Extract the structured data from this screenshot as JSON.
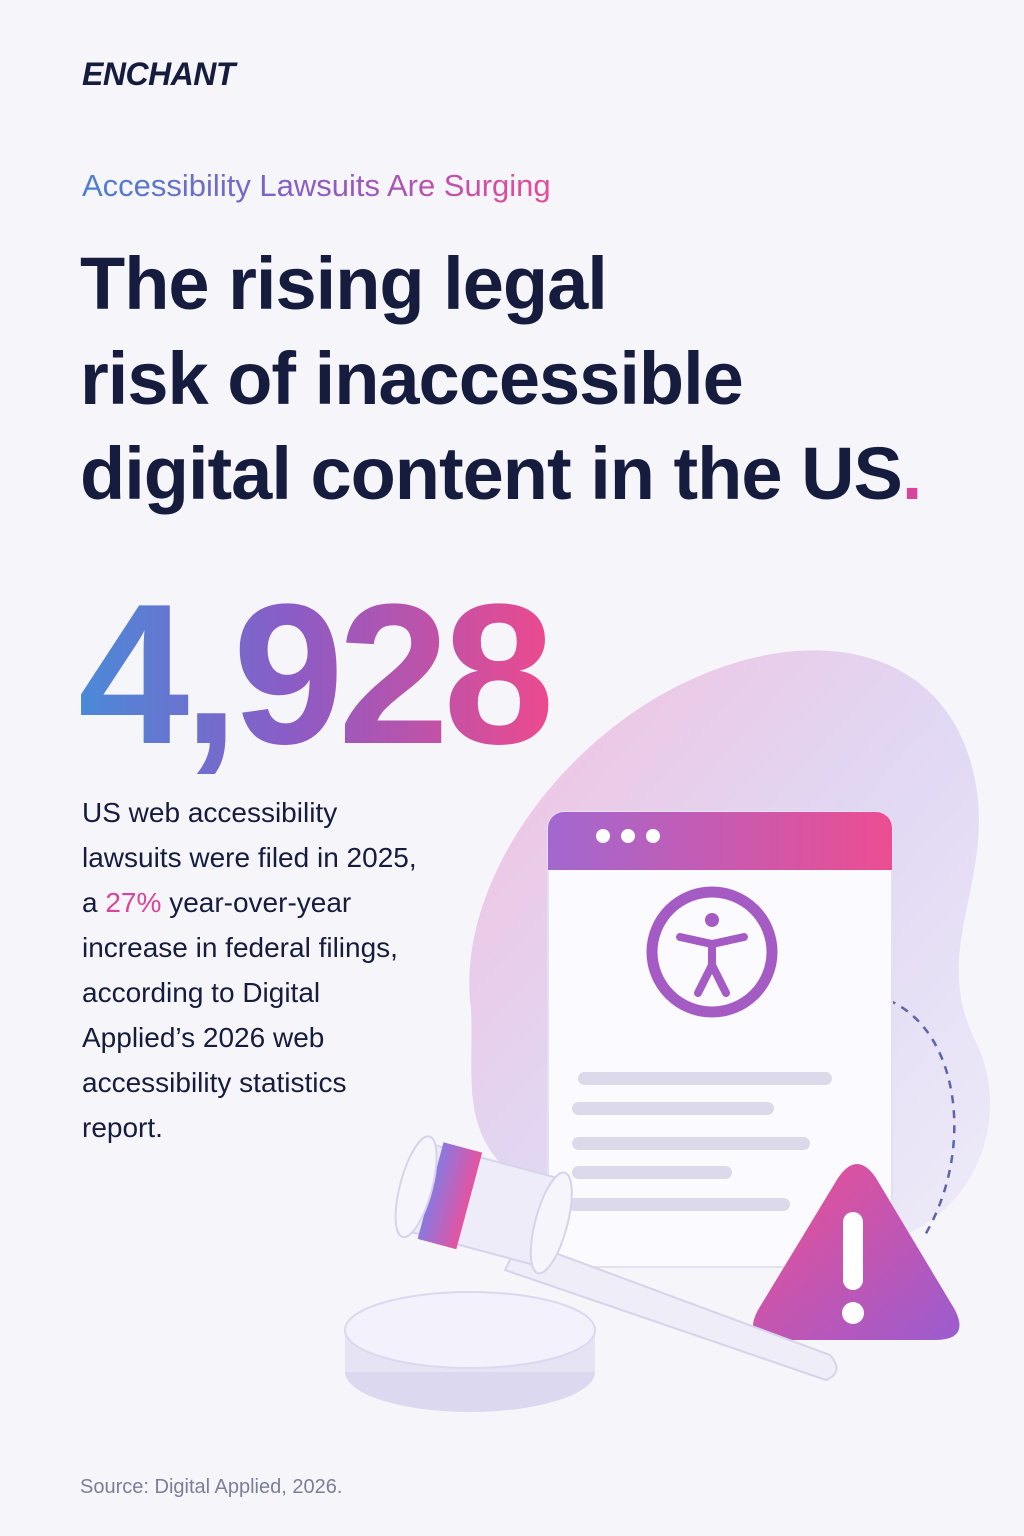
{
  "brand": "ENCHANT",
  "kicker": "Accessibility Lawsuits Are Surging",
  "headline": {
    "lines": [
      "The rising legal",
      "risk of inaccessible",
      "digital content in the US"
    ],
    "period": "."
  },
  "stat": "4,928",
  "body": {
    "lines": [
      "US web accessibility",
      "lawsuits were filed in 2025,",
      "increase in federal filings,",
      "according to Digital",
      "Applied’s 2026 web",
      "accessibility statistics",
      "report."
    ],
    "inline": {
      "before": "a",
      "highlight": "27%",
      "after": "year-over-year"
    }
  },
  "source": {
    "label": "Source:",
    "text": "Digital Applied, 2026."
  }
}
